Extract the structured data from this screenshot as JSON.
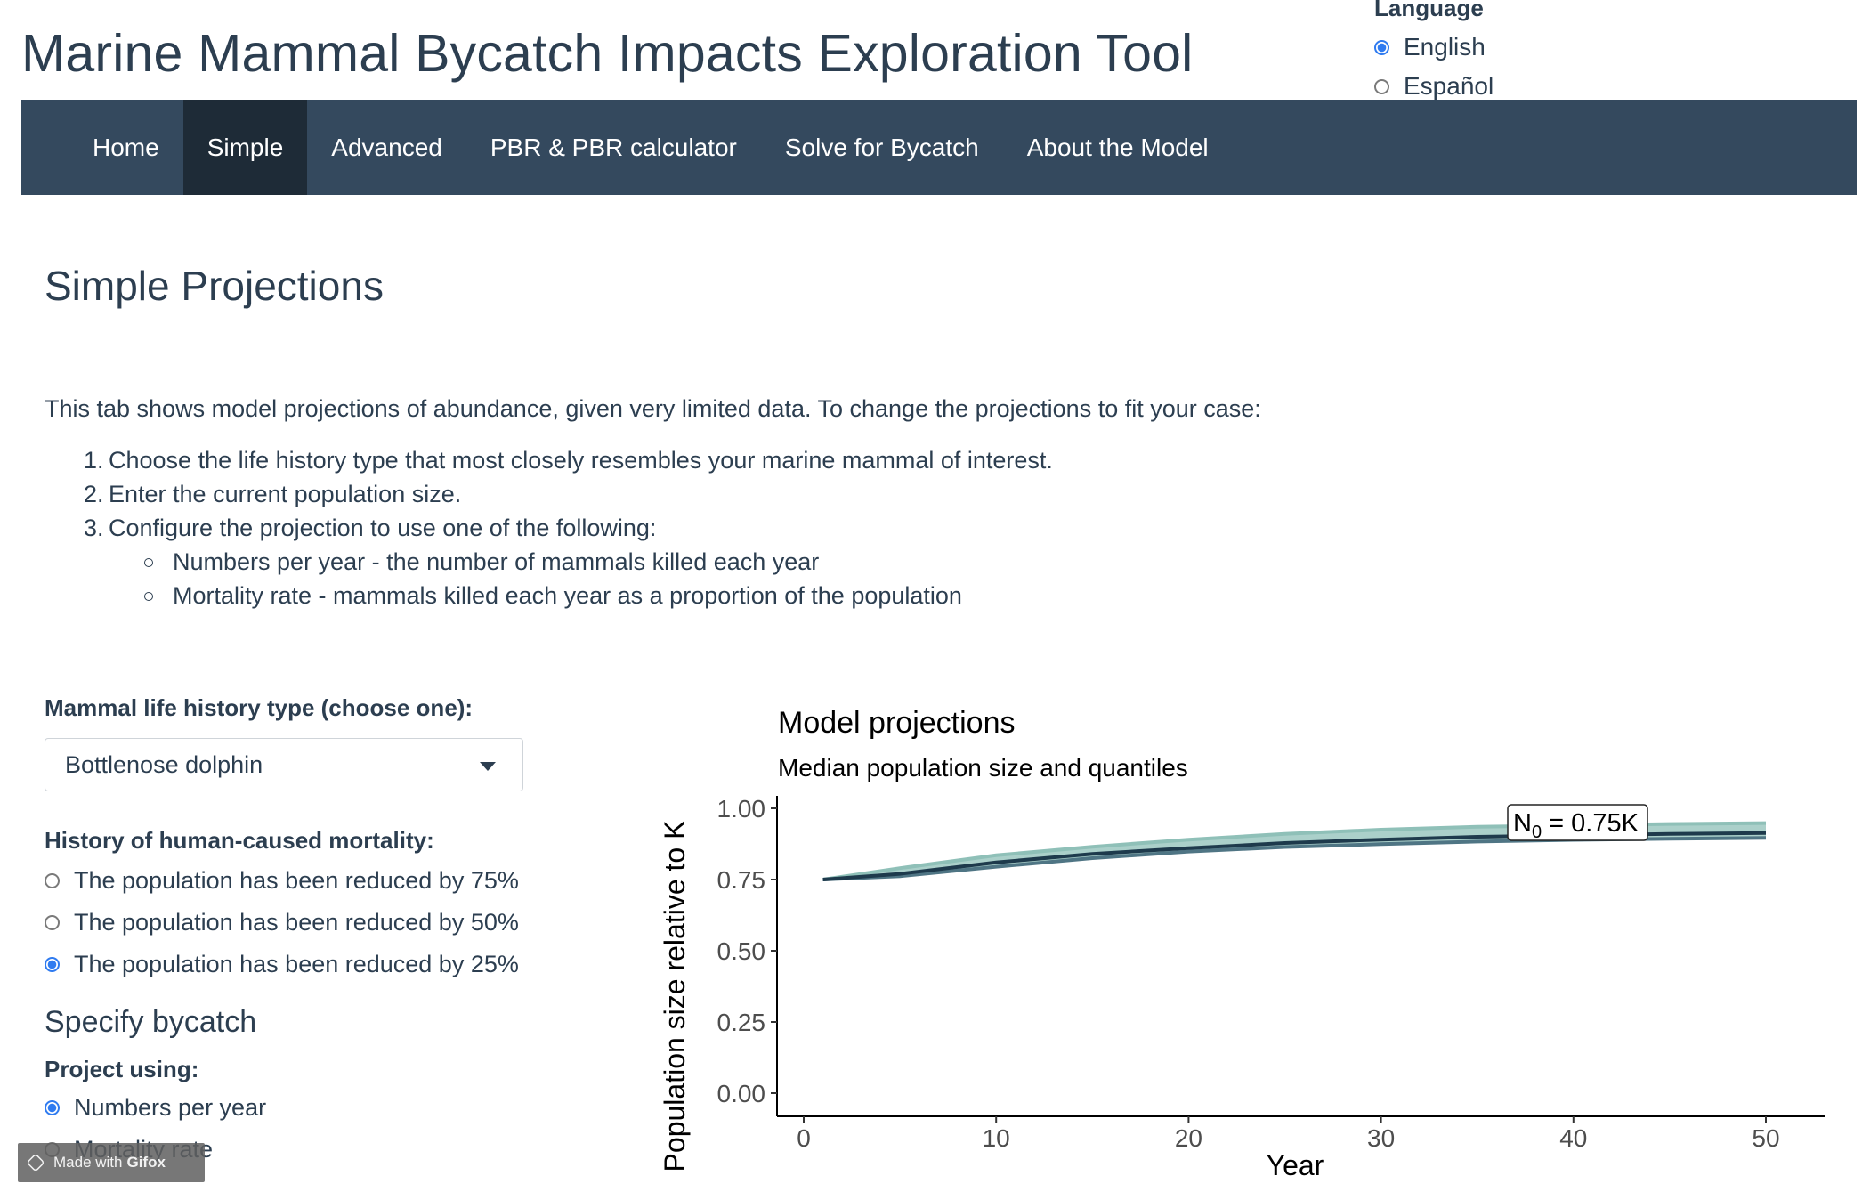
{
  "header": {
    "title": "Marine Mammal Bycatch Impacts Exploration Tool"
  },
  "language": {
    "label": "Language",
    "options": [
      {
        "label": "English",
        "selected": true
      },
      {
        "label": "Español",
        "selected": false
      }
    ]
  },
  "nav": {
    "tabs": [
      {
        "label": "Home",
        "active": false
      },
      {
        "label": "Simple",
        "active": true
      },
      {
        "label": "Advanced",
        "active": false
      },
      {
        "label": "PBR & PBR calculator",
        "active": false
      },
      {
        "label": "Solve for Bycatch",
        "active": false
      },
      {
        "label": "About the Model",
        "active": false
      }
    ]
  },
  "main": {
    "heading": "Simple Projections",
    "intro": "This tab shows model projections of abundance, given very limited data. To change the projections to fit your case:",
    "steps": [
      "Choose the life history type that most closely resembles your marine mammal of interest.",
      "Enter the current population size.",
      "Configure the projection to use one of the following:"
    ],
    "sub_steps": [
      "Numbers per year - the number of mammals killed each year",
      "Mortality rate - mammals killed each year as a proportion of the population"
    ]
  },
  "sidebar": {
    "life_history_label": "Mammal life history type (choose one):",
    "life_history_value": "Bottlenose dolphin",
    "history_label": "History of human-caused mortality:",
    "history_options": [
      {
        "label": "The population has been reduced by 75%",
        "selected": false
      },
      {
        "label": "The population has been reduced by 50%",
        "selected": false
      },
      {
        "label": "The population has been reduced by 25%",
        "selected": true
      }
    ],
    "bycatch_heading": "Specify bycatch",
    "project_label": "Project using:",
    "project_options": [
      {
        "label": "Numbers per year",
        "selected": true
      },
      {
        "label": "Mortality rate",
        "selected": false
      }
    ]
  },
  "watermark": {
    "prefix": "Made with",
    "brand": "Gifox"
  },
  "colors": {
    "navbar": "#34495e",
    "navbar_active": "#1e2b37",
    "text": "#2c3e50",
    "radio_accent": "#2f7bf0",
    "median_line": "#1e3a4c",
    "band_dark": "#4f7584",
    "band_light": "#8fc0b8"
  },
  "chart_data": {
    "type": "line",
    "title": "Model projections",
    "subtitle": "Median population size and quantiles",
    "xlabel": "Year",
    "ylabel": "Population size relative to K",
    "xlim": [
      0,
      50
    ],
    "ylim": [
      0,
      1
    ],
    "xticks": [
      "0",
      "10",
      "20",
      "30",
      "40",
      "50"
    ],
    "yticks": [
      "0.00",
      "0.25",
      "0.50",
      "0.75",
      "1.00"
    ],
    "annotation": {
      "text_main": "N",
      "text_sub": "0",
      "text_rest": " = 0.75K"
    },
    "grid": false,
    "x": [
      1,
      5,
      10,
      15,
      20,
      25,
      30,
      35,
      40,
      45,
      50
    ],
    "series": [
      {
        "role": "upper",
        "values": [
          0.75,
          0.79,
          0.835,
          0.865,
          0.89,
          0.91,
          0.925,
          0.935,
          0.94,
          0.945,
          0.948
        ]
      },
      {
        "role": "median",
        "values": [
          0.75,
          0.77,
          0.81,
          0.84,
          0.86,
          0.878,
          0.89,
          0.9,
          0.905,
          0.91,
          0.913
        ]
      },
      {
        "role": "lower",
        "values": [
          0.75,
          0.762,
          0.795,
          0.825,
          0.848,
          0.864,
          0.874,
          0.883,
          0.889,
          0.893,
          0.896
        ]
      }
    ]
  }
}
